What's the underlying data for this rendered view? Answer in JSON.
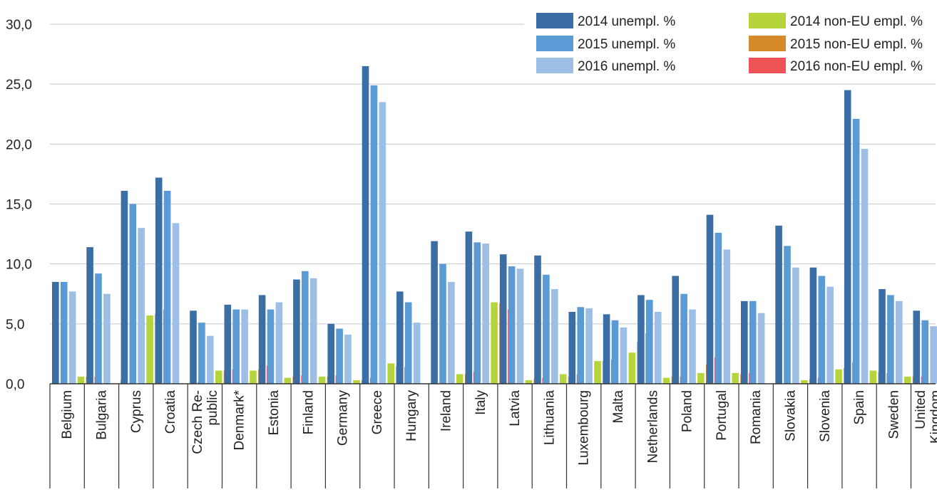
{
  "chart_data": {
    "type": "bar",
    "title": "",
    "xlabel": "",
    "ylabel": "",
    "ylim": [
      0,
      30
    ],
    "yticks": [
      0,
      5,
      10,
      15,
      20,
      25,
      30
    ],
    "ytick_labels": [
      "0,0",
      "5,0",
      "10,0",
      "15,0",
      "20,0",
      "25,0",
      "30,0"
    ],
    "grid": true,
    "legend_position": "top-right",
    "categories": [
      [
        "Belgium"
      ],
      [
        "Bulgaria"
      ],
      [
        "Cyprus"
      ],
      [
        "Croatia"
      ],
      [
        "Czech Re-",
        "public"
      ],
      [
        "Denmark*"
      ],
      [
        "Estonia"
      ],
      [
        "Finland"
      ],
      [
        "Germany"
      ],
      [
        "Greece"
      ],
      [
        "Hungary"
      ],
      [
        "Ireland"
      ],
      [
        "Italy"
      ],
      [
        "Latvia"
      ],
      [
        "Lithuania"
      ],
      [
        "Luxembourg"
      ],
      [
        "Malta"
      ],
      [
        "Netherlands"
      ],
      [
        "Poland"
      ],
      [
        "Portugal"
      ],
      [
        "Romania"
      ],
      [
        "Slovakia"
      ],
      [
        "Slovenia"
      ],
      [
        "Spain"
      ],
      [
        "Sweden"
      ],
      [
        "United",
        "Kingdom"
      ]
    ],
    "series": [
      {
        "name": "2014 unempl. %",
        "color": "#3a6ea5",
        "values": [
          8.5,
          11.4,
          16.1,
          17.2,
          6.1,
          6.6,
          7.4,
          8.7,
          5.0,
          26.5,
          7.7,
          11.9,
          12.7,
          10.8,
          10.7,
          6.0,
          5.8,
          7.4,
          9.0,
          14.1,
          6.9,
          13.2,
          9.7,
          24.5,
          7.9,
          6.1
        ]
      },
      {
        "name": "2015 unempl. %",
        "color": "#5b9bd5",
        "values": [
          8.5,
          9.2,
          15.0,
          16.1,
          5.1,
          6.2,
          6.2,
          9.4,
          4.6,
          24.9,
          6.8,
          10.0,
          11.8,
          9.8,
          9.1,
          6.4,
          5.3,
          7.0,
          7.5,
          12.6,
          6.9,
          11.5,
          9.0,
          22.1,
          7.4,
          5.3
        ]
      },
      {
        "name": "2016 unempl. %",
        "color": "#9dbfe5",
        "values": [
          7.7,
          7.5,
          13.0,
          13.4,
          4.0,
          6.2,
          6.8,
          8.8,
          4.1,
          23.5,
          5.1,
          8.5,
          11.7,
          9.6,
          7.9,
          6.3,
          4.7,
          6.0,
          6.2,
          11.2,
          5.9,
          9.7,
          8.1,
          19.6,
          6.9,
          4.8
        ]
      },
      {
        "name": "2014 non-EU empl. %",
        "color": "#b6d53c",
        "values": [
          0.6,
          0.0,
          5.7,
          0.0,
          1.1,
          1.1,
          0.5,
          0.6,
          0.3,
          1.7,
          0.0,
          0.8,
          6.8,
          0.3,
          0.8,
          1.9,
          2.6,
          0.5,
          0.9,
          0.9,
          0.0,
          0.3,
          1.2,
          1.1,
          0.6,
          0.5
        ]
      },
      {
        "name": "2015 non-EU empl. %",
        "color": "#d68a2a",
        "values": [
          0.6,
          0.3,
          5.8,
          0.0,
          1.1,
          1.2,
          0.6,
          0.6,
          0.3,
          1.5,
          0.0,
          0.8,
          6.7,
          0.4,
          0.6,
          1.9,
          3.5,
          0.6,
          1.6,
          0.8,
          0.0,
          0.4,
          1.3,
          1.0,
          0.6,
          0.5
        ]
      },
      {
        "name": "2016 non-EU empl. %",
        "color": "#ee5455",
        "values": [
          0.6,
          0.0,
          6.2,
          0.2,
          1.2,
          1.5,
          0.7,
          0.7,
          0.5,
          1.4,
          0.0,
          1.0,
          6.2,
          0.5,
          0.8,
          2.0,
          4.2,
          0.6,
          2.2,
          0.9,
          0.0,
          0.5,
          1.8,
          0.9,
          0.6,
          0.6
        ]
      }
    ]
  }
}
